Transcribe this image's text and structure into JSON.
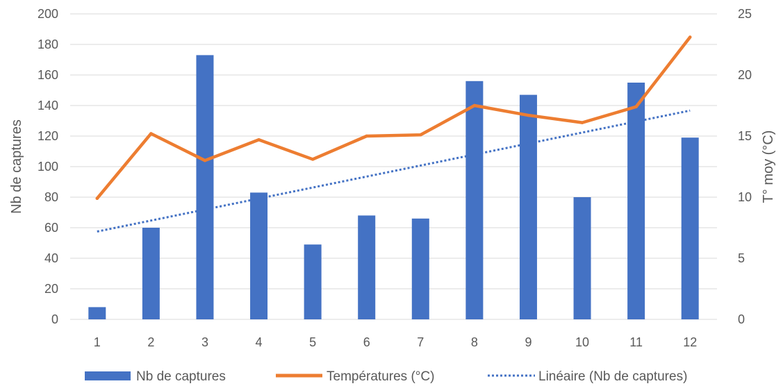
{
  "chart_data": {
    "type": "bar",
    "title": "",
    "categories": [
      "1",
      "2",
      "3",
      "4",
      "5",
      "6",
      "7",
      "8",
      "9",
      "10",
      "11",
      "12"
    ],
    "series": [
      {
        "name": "Nb de captures",
        "type": "bar",
        "axis": "left",
        "color": "#4472C4",
        "values": [
          8,
          60,
          173,
          83,
          49,
          68,
          66,
          156,
          147,
          80,
          155,
          119
        ]
      },
      {
        "name": "Températures (°C)",
        "type": "line",
        "axis": "right",
        "color": "#ED7D31",
        "values": [
          9.9,
          15.2,
          13.0,
          14.7,
          13.1,
          15.0,
          15.1,
          17.5,
          16.7,
          16.1,
          17.4,
          23.1
        ]
      },
      {
        "name": "Linéaire (Nb de captures)",
        "type": "trendline",
        "axis": "left",
        "color": "#4472C4",
        "style": "dotted",
        "values": [
          57.5,
          64.7,
          71.9,
          79.1,
          86.3,
          93.5,
          100.7,
          107.9,
          115.1,
          122.3,
          129.5,
          136.7
        ]
      }
    ],
    "ylabel": "Nb de captures",
    "y2label": "T° moy (°C)",
    "ylim": [
      0,
      200
    ],
    "y2lim": [
      0,
      25
    ],
    "yticks": [
      "0",
      "20",
      "40",
      "60",
      "80",
      "100",
      "120",
      "140",
      "160",
      "180",
      "200"
    ],
    "y2ticks": [
      "0",
      "5",
      "10",
      "15",
      "20",
      "25"
    ],
    "grid": true,
    "legend": "bottom"
  }
}
